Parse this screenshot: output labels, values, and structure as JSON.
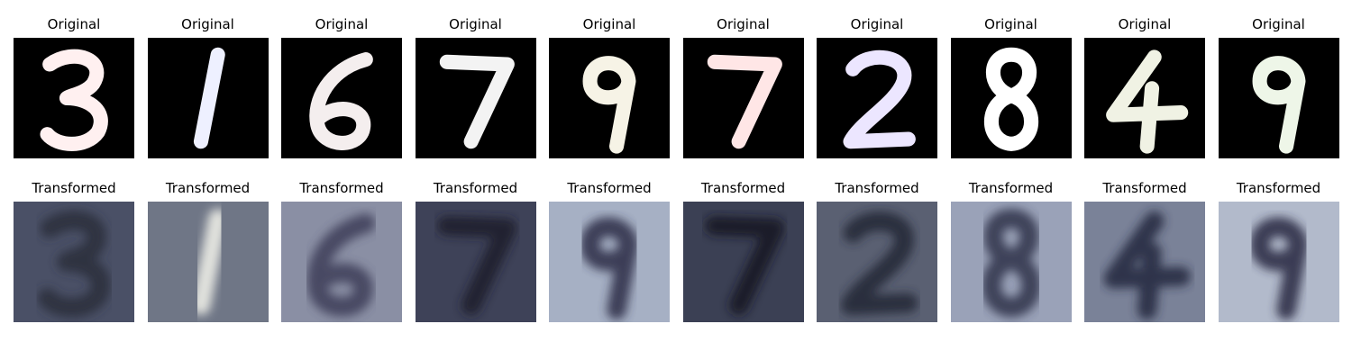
{
  "rows": [
    {
      "title": "Original",
      "style": "mnist",
      "panels": [
        {
          "digit": "3",
          "tint": "#fff0f0"
        },
        {
          "digit": "1",
          "tint": "#eef0ff"
        },
        {
          "digit": "6",
          "tint": "#f4eeee"
        },
        {
          "digit": "7",
          "tint": "#f3f3f3"
        },
        {
          "digit": "9",
          "tint": "#f6f3e6"
        },
        {
          "digit": "7",
          "tint": "#ffe6e6"
        },
        {
          "digit": "2",
          "tint": "#ece6ff"
        },
        {
          "digit": "8",
          "tint": "#ffffff"
        },
        {
          "digit": "4",
          "tint": "#f0f2e4"
        },
        {
          "digit": "9",
          "tint": "#eef6e8"
        }
      ]
    },
    {
      "title": "Transformed",
      "style": "svhn",
      "panels": [
        {
          "digit": "3",
          "bg": "#4a5066",
          "fg": "#2a2d3a"
        },
        {
          "digit": "1",
          "bg": "#6f7686",
          "fg": "#f4f4ec"
        },
        {
          "digit": "6",
          "bg": "#8a8fa4",
          "fg": "#3c3d58"
        },
        {
          "digit": "7",
          "bg": "#3e4258",
          "fg": "#1c1e2c"
        },
        {
          "digit": "9",
          "bg": "#a6b0c4",
          "fg": "#2a2c44"
        },
        {
          "digit": "7",
          "bg": "#3b4054",
          "fg": "#161824"
        },
        {
          "digit": "2",
          "bg": "#5a6072",
          "fg": "#242636"
        },
        {
          "digit": "8",
          "bg": "#9aa2b8",
          "fg": "#2e3048"
        },
        {
          "digit": "4",
          "bg": "#7a8298",
          "fg": "#24263c"
        },
        {
          "digit": "9",
          "bg": "#b2bacb",
          "fg": "#262840"
        }
      ]
    }
  ]
}
